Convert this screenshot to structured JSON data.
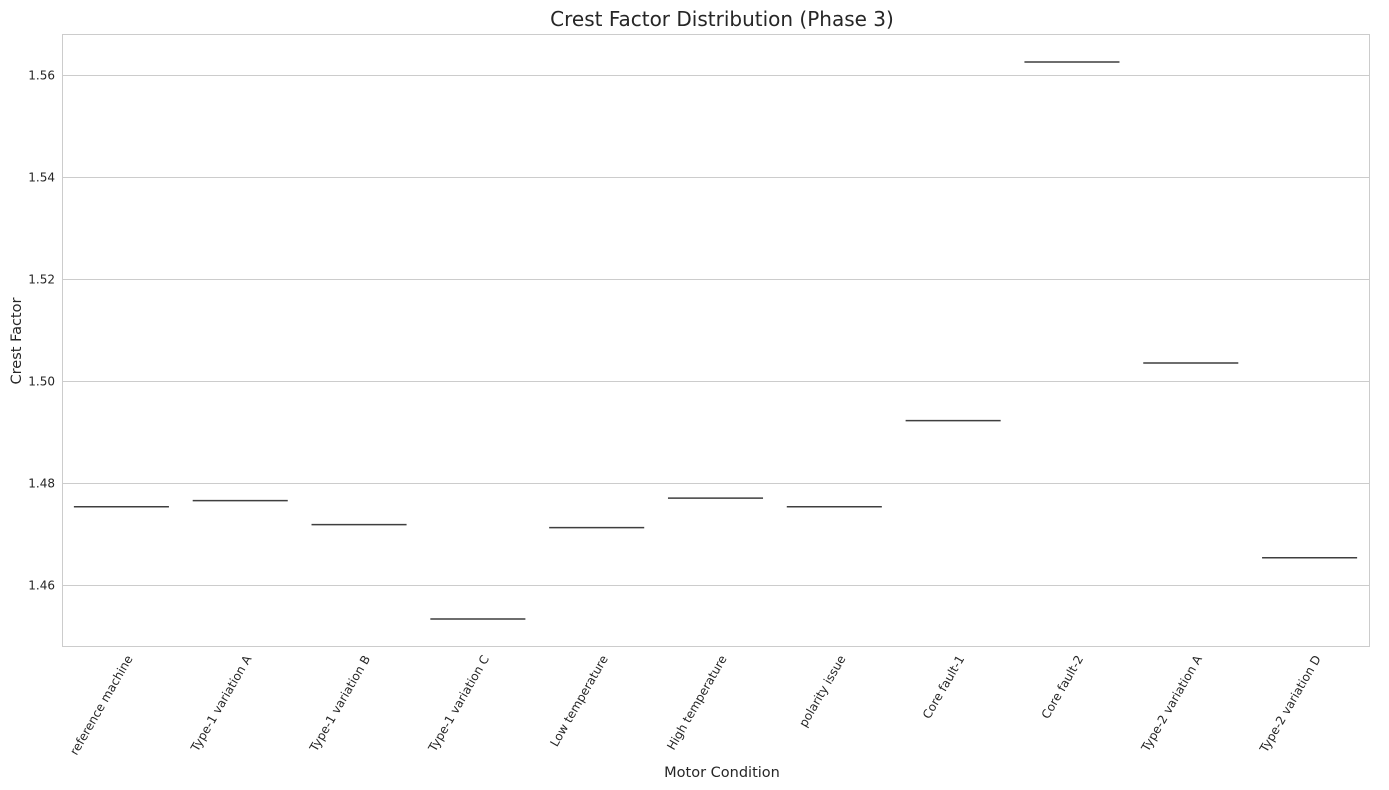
{
  "chart_data": {
    "type": "box",
    "title": "Crest Factor Distribution (Phase 3)",
    "xlabel": "Motor Condition",
    "ylabel": "Crest Factor",
    "ylim": [
      1.448,
      1.568
    ],
    "yticks": [
      1.46,
      1.48,
      1.5,
      1.52,
      1.54,
      1.56
    ],
    "ytick_labels": [
      "1.46",
      "1.48",
      "1.50",
      "1.52",
      "1.54",
      "1.56"
    ],
    "grid": "horizontal",
    "categories": [
      "reference machine",
      "Type-1 variation A",
      "Type-1 variation B",
      "Type-1 variation C",
      "Low temperature",
      "High temperature",
      "polarity issue",
      "Core fault-1",
      "Core fault-2",
      "Type-2 variation A",
      "Type-2 variation D"
    ],
    "values": [
      1.4753,
      1.4765,
      1.4718,
      1.4533,
      1.4712,
      1.477,
      1.4753,
      1.4922,
      1.5625,
      1.5035,
      1.4653
    ],
    "colors": {
      "box_line": "#3f3f3f",
      "grid": "#cccccc",
      "text": "#262626"
    }
  }
}
